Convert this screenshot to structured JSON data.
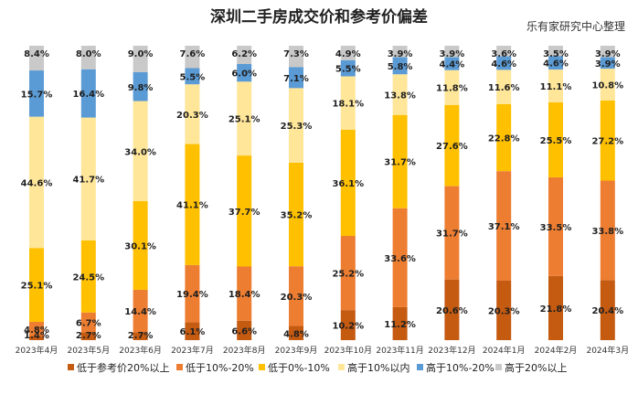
{
  "header": {
    "title": "深圳二手房成交价和参考价偏差",
    "source": "乐有家研究中心整理"
  },
  "chart_data": {
    "type": "bar",
    "stacked": true,
    "percent": true,
    "title": "深圳二手房成交价和参考价偏差",
    "categories": [
      "2023年4月",
      "2023年5月",
      "2023年6月",
      "2023年7月",
      "2023年8月",
      "2023年9月",
      "2023年10月",
      "2023年11月",
      "2023年12月",
      "2024年1月",
      "2024年2月",
      "2024年3月"
    ],
    "series": [
      {
        "name": "低于参考价20%以上",
        "color": "#c55a11",
        "values": [
          1.4,
          2.7,
          2.7,
          6.1,
          6.6,
          4.8,
          10.2,
          11.2,
          20.6,
          20.3,
          21.8,
          20.4
        ]
      },
      {
        "name": "低于10%-20%",
        "color": "#ed7d31",
        "values": [
          4.8,
          6.7,
          14.4,
          19.4,
          18.4,
          20.3,
          25.2,
          33.6,
          31.7,
          37.1,
          33.5,
          33.8
        ]
      },
      {
        "name": "低于0%-10%",
        "color": "#ffc000",
        "values": [
          25.1,
          24.5,
          30.1,
          41.1,
          37.7,
          35.2,
          36.1,
          31.7,
          27.6,
          22.8,
          25.5,
          27.2
        ]
      },
      {
        "name": "高于10%以内",
        "color": "#ffe699",
        "values": [
          44.6,
          41.7,
          34.0,
          20.3,
          25.1,
          25.3,
          18.1,
          13.8,
          11.8,
          11.6,
          11.1,
          10.8
        ]
      },
      {
        "name": "高于10%-20%",
        "color": "#5b9bd5",
        "values": [
          15.7,
          16.4,
          9.8,
          5.5,
          6.0,
          7.1,
          5.5,
          5.8,
          4.4,
          4.6,
          4.6,
          3.9
        ]
      },
      {
        "name": "高于20%以上",
        "color": "#c9c9c9",
        "values": [
          8.4,
          8.0,
          9.0,
          7.6,
          6.2,
          7.3,
          4.9,
          3.9,
          3.9,
          3.6,
          3.5,
          3.9
        ]
      }
    ],
    "value_suffix": "%",
    "legend_position": "bottom",
    "grid": false
  }
}
